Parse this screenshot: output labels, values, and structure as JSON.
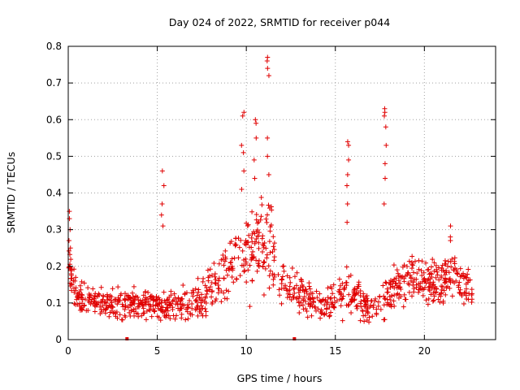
{
  "chart_data": {
    "type": "scatter",
    "title": "Day 024 of 2022, SRMTID for receiver p044",
    "xlabel": "GPS time / hours",
    "ylabel": "SRMTID / TECUs",
    "xlim": [
      0,
      24
    ],
    "ylim": [
      0,
      0.8
    ],
    "x_ticks": [
      {
        "value": 0,
        "label": "0"
      },
      {
        "value": 5,
        "label": "5"
      },
      {
        "value": 10,
        "label": "10"
      },
      {
        "value": 15,
        "label": "15"
      },
      {
        "value": 20,
        "label": "20"
      }
    ],
    "y_ticks": [
      {
        "value": 0,
        "label": "0"
      },
      {
        "value": 0.1,
        "label": "0.1"
      },
      {
        "value": 0.2,
        "label": "0.2"
      },
      {
        "value": 0.3,
        "label": "0.3"
      },
      {
        "value": 0.4,
        "label": "0.4"
      },
      {
        "value": 0.5,
        "label": "0.5"
      },
      {
        "value": 0.6,
        "label": "0.6"
      },
      {
        "value": 0.7,
        "label": "0.7"
      },
      {
        "value": 0.8,
        "label": "0.8"
      }
    ],
    "grid": true,
    "marker": "+",
    "color": "#e00000",
    "series": [
      {
        "name": "SRMTID",
        "envelope": [
          {
            "x": 0.0,
            "base": 0.2,
            "spread": 0.1
          },
          {
            "x": 0.5,
            "base": 0.11,
            "spread": 0.05
          },
          {
            "x": 2.0,
            "base": 0.1,
            "spread": 0.06
          },
          {
            "x": 4.0,
            "base": 0.1,
            "spread": 0.06
          },
          {
            "x": 6.0,
            "base": 0.09,
            "spread": 0.06
          },
          {
            "x": 7.5,
            "base": 0.11,
            "spread": 0.07
          },
          {
            "x": 8.5,
            "base": 0.17,
            "spread": 0.1
          },
          {
            "x": 9.5,
            "base": 0.22,
            "spread": 0.14
          },
          {
            "x": 10.5,
            "base": 0.25,
            "spread": 0.18
          },
          {
            "x": 11.2,
            "base": 0.27,
            "spread": 0.18
          },
          {
            "x": 12.0,
            "base": 0.16,
            "spread": 0.1
          },
          {
            "x": 13.0,
            "base": 0.12,
            "spread": 0.07
          },
          {
            "x": 14.5,
            "base": 0.09,
            "spread": 0.06
          },
          {
            "x": 15.5,
            "base": 0.13,
            "spread": 0.09
          },
          {
            "x": 16.5,
            "base": 0.1,
            "spread": 0.07
          },
          {
            "x": 17.5,
            "base": 0.09,
            "spread": 0.07
          },
          {
            "x": 18.5,
            "base": 0.14,
            "spread": 0.09
          },
          {
            "x": 19.5,
            "base": 0.18,
            "spread": 0.09
          },
          {
            "x": 20.5,
            "base": 0.14,
            "spread": 0.09
          },
          {
            "x": 21.5,
            "base": 0.18,
            "spread": 0.09
          },
          {
            "x": 22.7,
            "base": 0.13,
            "spread": 0.06
          }
        ],
        "spikes": [
          {
            "x": 0.1,
            "values": [
              0.35,
              0.33,
              0.3,
              0.27,
              0.25
            ]
          },
          {
            "x": 5.3,
            "values": [
              0.46,
              0.42,
              0.37,
              0.34,
              0.31
            ]
          },
          {
            "x": 9.8,
            "values": [
              0.62,
              0.61,
              0.53,
              0.51,
              0.46,
              0.41
            ]
          },
          {
            "x": 10.5,
            "values": [
              0.6,
              0.59,
              0.55,
              0.49,
              0.44
            ]
          },
          {
            "x": 11.2,
            "values": [
              0.77,
              0.76,
              0.74,
              0.72,
              0.55,
              0.5,
              0.45
            ]
          },
          {
            "x": 15.7,
            "values": [
              0.54,
              0.53,
              0.49,
              0.45,
              0.42,
              0.37,
              0.32
            ]
          },
          {
            "x": 17.8,
            "values": [
              0.63,
              0.62,
              0.61,
              0.58,
              0.53,
              0.48,
              0.44,
              0.37
            ]
          },
          {
            "x": 21.5,
            "values": [
              0.31,
              0.28,
              0.27
            ]
          }
        ],
        "zero_markers": [
          3.3,
          12.7
        ],
        "x_start": 0.0,
        "x_end": 22.7,
        "points": 1100
      }
    ]
  }
}
